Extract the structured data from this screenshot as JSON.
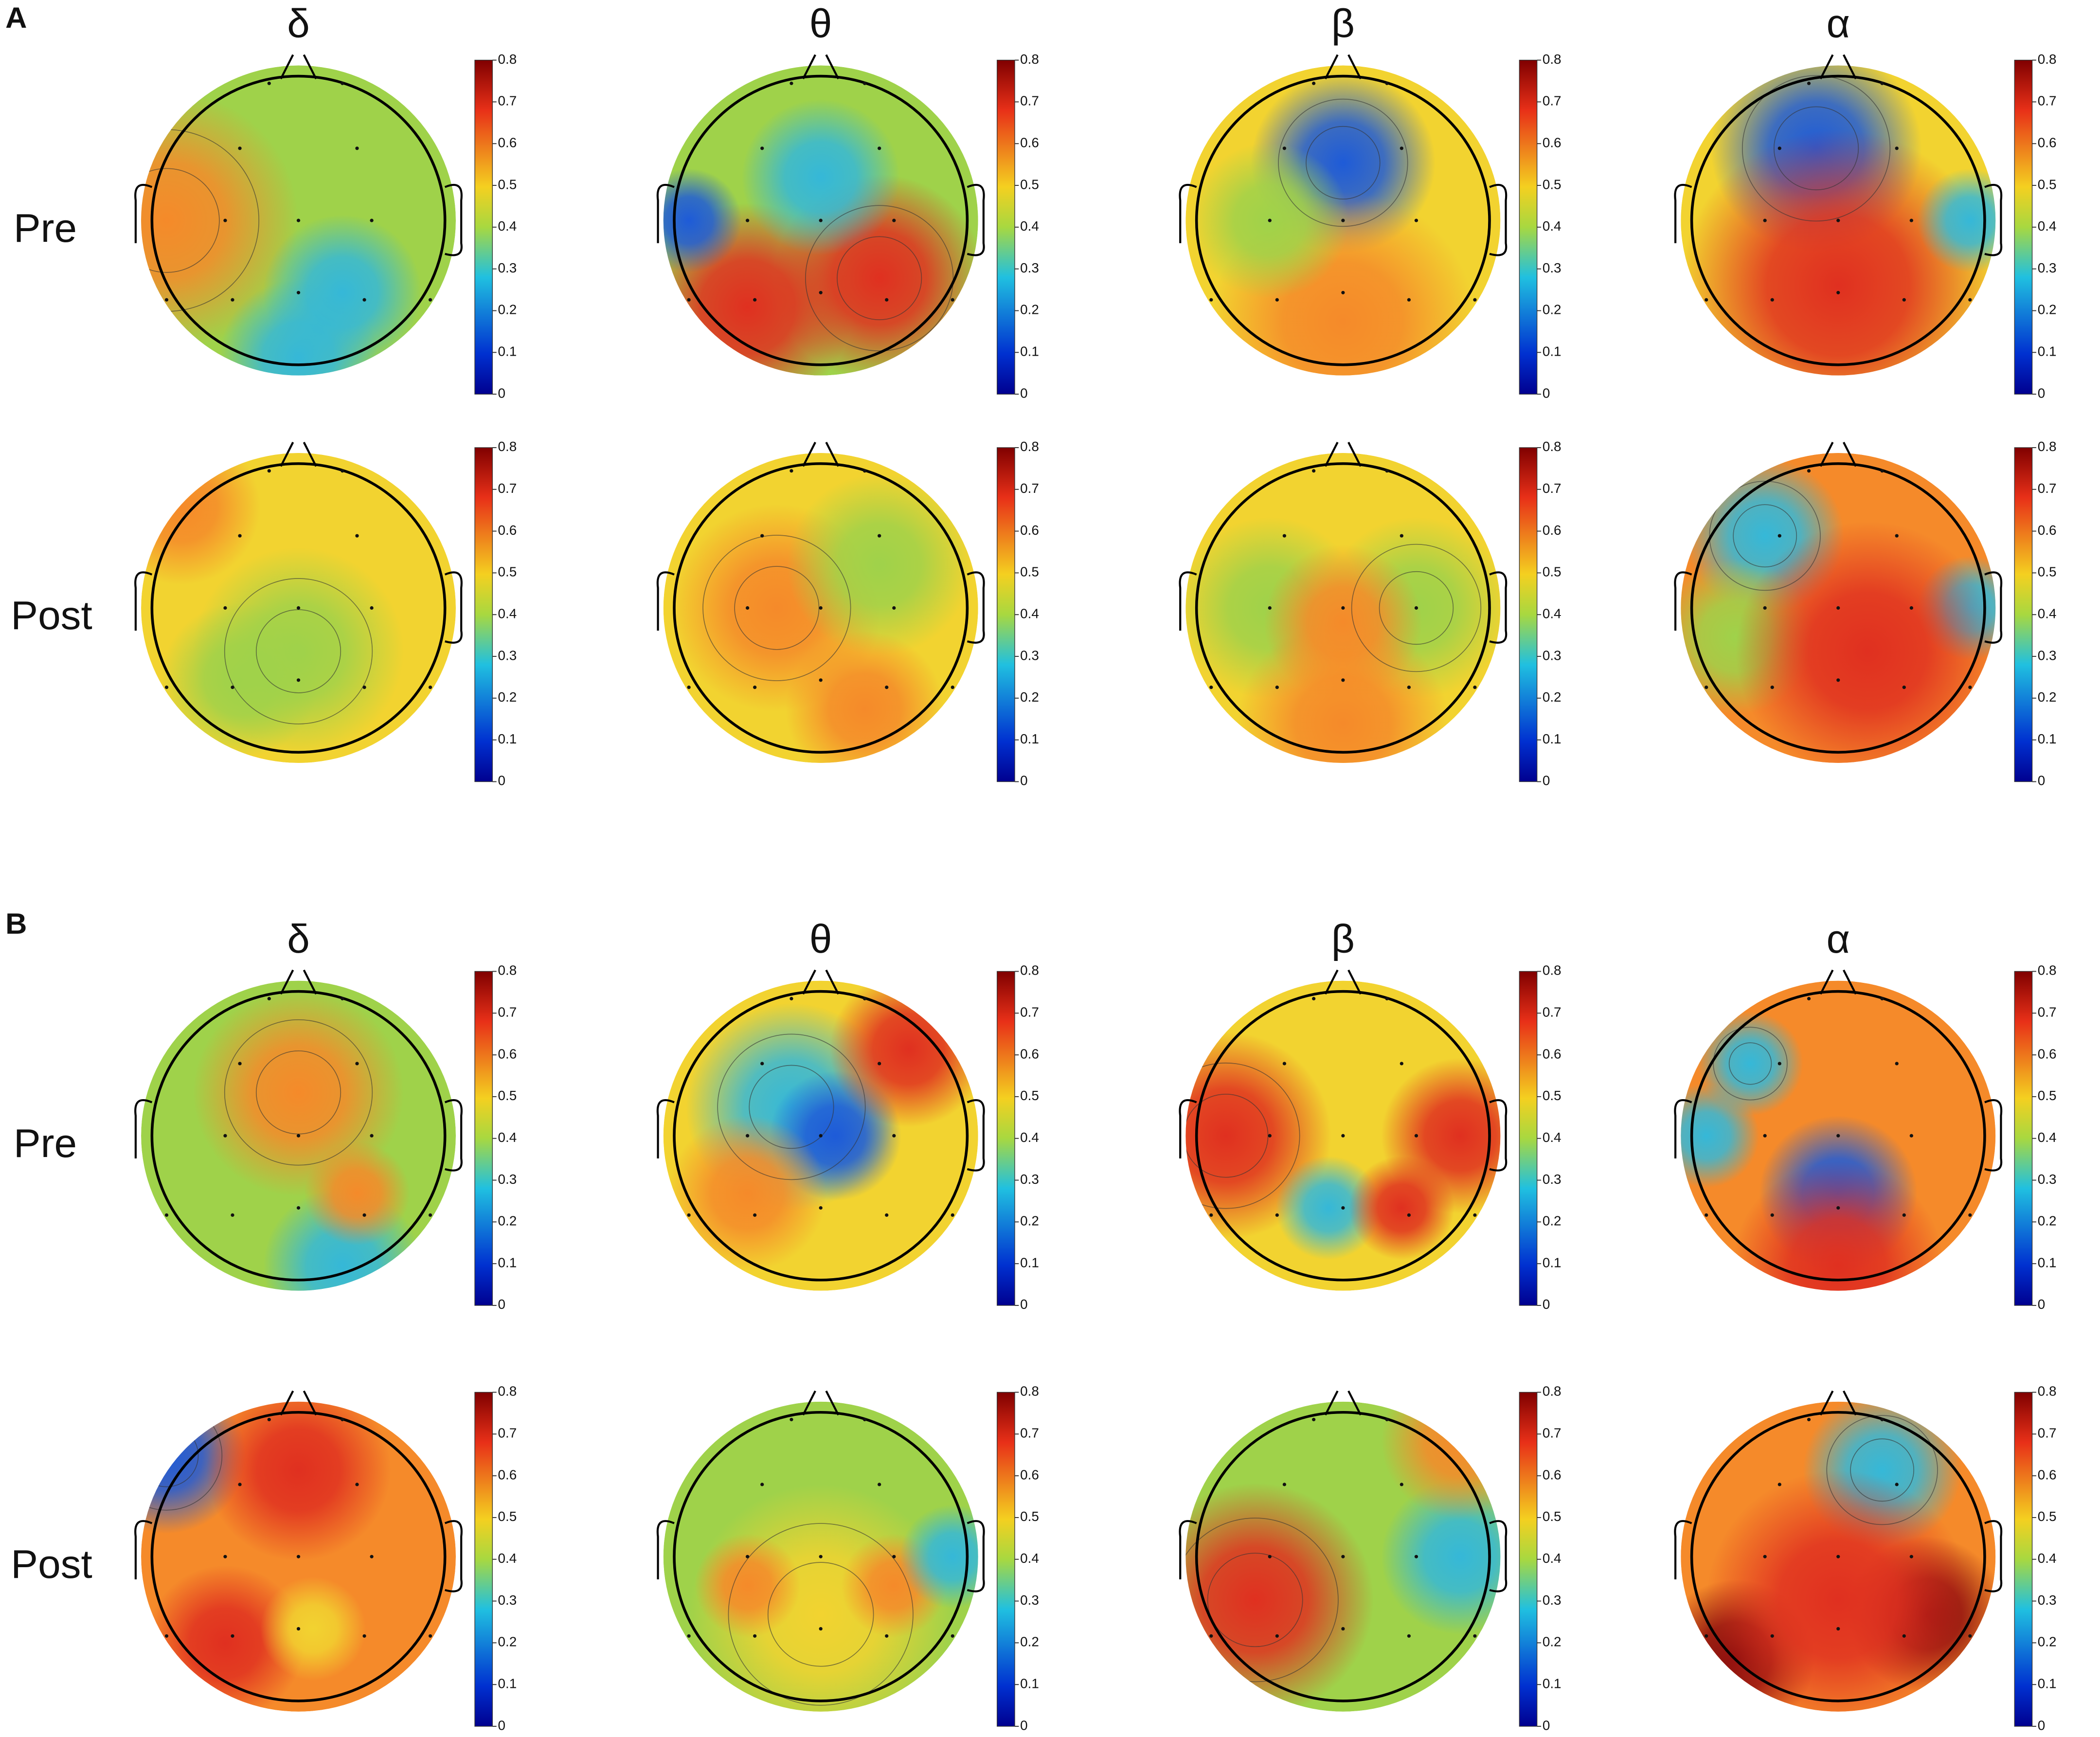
{
  "panels": [
    {
      "label": "A",
      "bands": [
        "δ",
        "θ",
        "β",
        "α"
      ],
      "rows": [
        "Pre",
        "Post"
      ]
    },
    {
      "label": "B",
      "bands": [
        "δ",
        "θ",
        "β",
        "α"
      ],
      "rows": [
        "Pre",
        "Post"
      ]
    }
  ],
  "colorbar": {
    "ticks": [
      0,
      0.1,
      0.2,
      0.3,
      0.4,
      0.5,
      0.6,
      0.7,
      0.8
    ]
  }
}
